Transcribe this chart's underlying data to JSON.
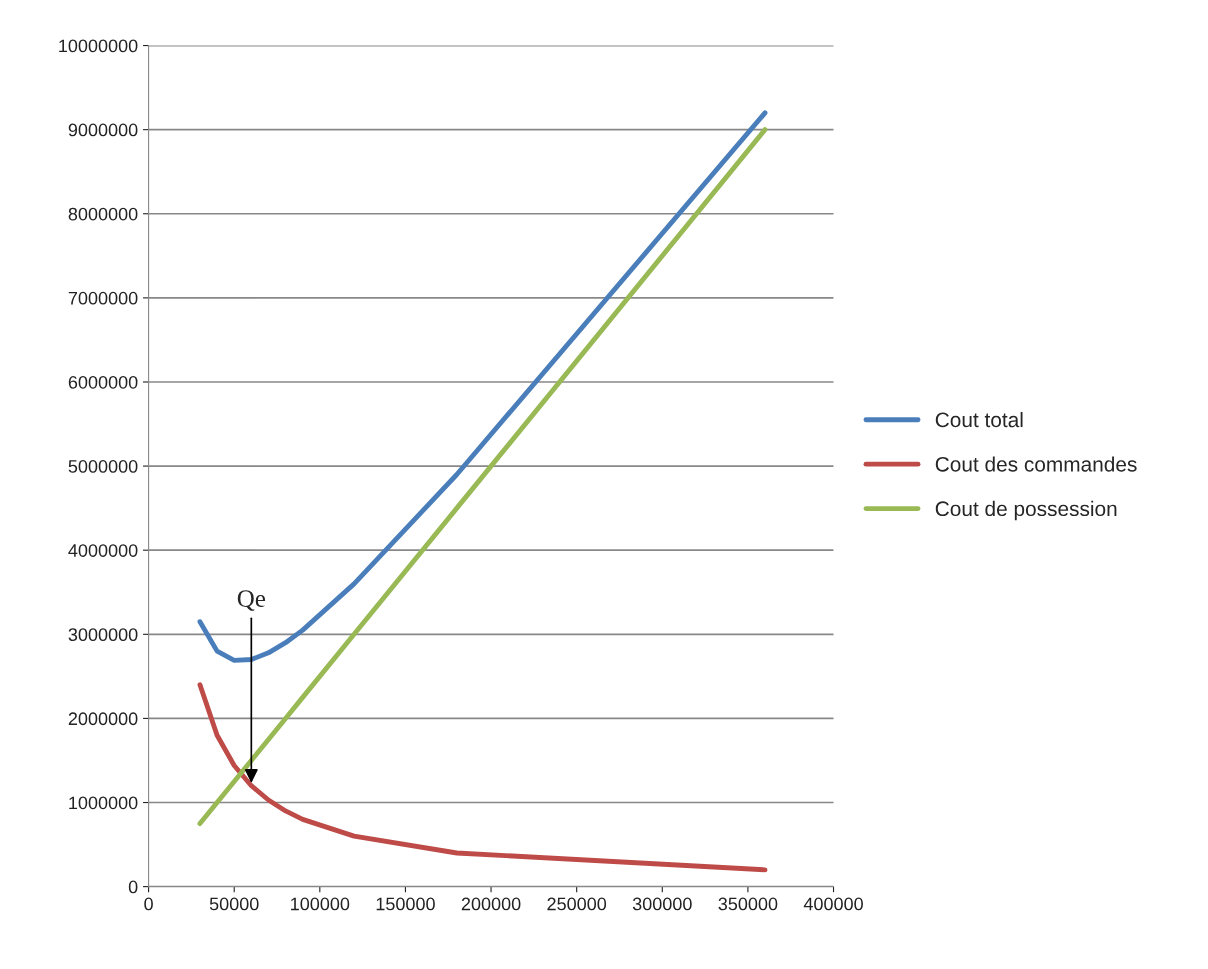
{
  "chart_data": {
    "type": "line",
    "x": [
      30000,
      40000,
      50000,
      60000,
      70000,
      80000,
      90000,
      120000,
      180000,
      360000
    ],
    "series": [
      {
        "name": "Cout total",
        "color": "#4a7ebb",
        "values": [
          3150000,
          2800000,
          2690000,
          2700000,
          2780000,
          2900000,
          3050000,
          3600000,
          4900000,
          9200000
        ]
      },
      {
        "name": "Cout des commandes",
        "color": "#be4b48",
        "values": [
          2400000,
          1800000,
          1440000,
          1200000,
          1030000,
          900000,
          800000,
          600000,
          400000,
          200000
        ]
      },
      {
        "name": "Cout de possession",
        "color": "#98b954",
        "values": [
          750000,
          1000000,
          1250000,
          1500000,
          1750000,
          2000000,
          2250000,
          3000000,
          4500000,
          9000000
        ]
      }
    ],
    "xlim": [
      0,
      400000
    ],
    "xticks": [
      0,
      50000,
      100000,
      150000,
      200000,
      250000,
      300000,
      350000,
      400000
    ],
    "ylim": [
      0,
      10000000
    ],
    "yticks": [
      0,
      1000000,
      2000000,
      3000000,
      4000000,
      5000000,
      6000000,
      7000000,
      8000000,
      9000000,
      10000000
    ],
    "annotations": [
      {
        "text": "Qe",
        "x": 60000,
        "y": 1200000
      }
    ],
    "grid": "y",
    "legend": "right",
    "marker": "none",
    "line_style": "solid"
  }
}
